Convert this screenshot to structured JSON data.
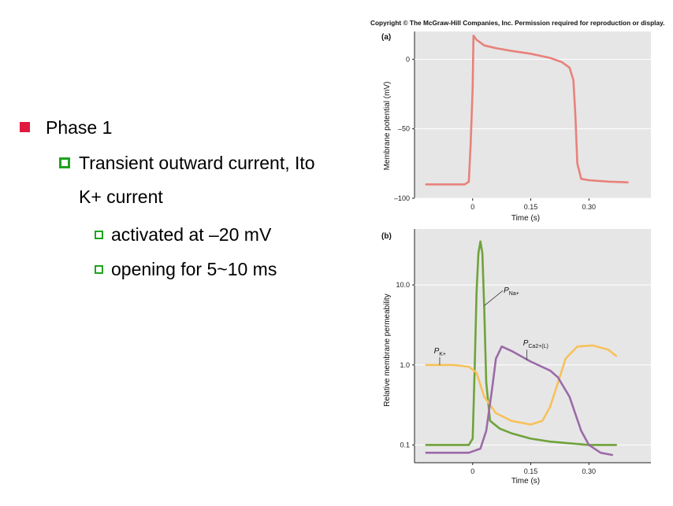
{
  "slide": {
    "bullets": [
      {
        "level": 1,
        "text": "Phase 1"
      },
      {
        "level": 2,
        "text": "Transient outward current, Ito"
      },
      {
        "level": 2,
        "text": "K+ current",
        "continuation": true
      },
      {
        "level": 3,
        "text": "activated at –20 mV"
      },
      {
        "level": 3,
        "text": "opening for 5~10 ms"
      }
    ],
    "colors": {
      "level1_marker": "#e0193f",
      "sub_marker": "#1fa31f"
    }
  },
  "copyright": "Copyright © The McGraw-Hill Companies, Inc. Permission required for reproduction or display.",
  "chart_data": [
    {
      "type": "line",
      "panel_label": "(a)",
      "xlabel": "Time (s)",
      "ylabel": "Membrane potential (mV)",
      "xlim": [
        -0.15,
        0.46
      ],
      "ylim": [
        -100,
        20
      ],
      "xticks": [
        {
          "v": 0,
          "label": "0"
        },
        {
          "v": 0.15,
          "label": "0.15"
        },
        {
          "v": 0.3,
          "label": "0.30"
        }
      ],
      "yticks": [
        {
          "v": 0,
          "label": "0"
        },
        {
          "v": -50,
          "label": "–50"
        },
        {
          "v": -100,
          "label": "–100"
        }
      ],
      "series": [
        {
          "color": "#e8817b",
          "points": [
            [
              -0.12,
              -90
            ],
            [
              -0.02,
              -90
            ],
            [
              -0.01,
              -88
            ],
            [
              -0.005,
              -60
            ],
            [
              0,
              -20
            ],
            [
              0.002,
              17
            ],
            [
              0.01,
              14
            ],
            [
              0.03,
              10
            ],
            [
              0.06,
              8
            ],
            [
              0.1,
              6
            ],
            [
              0.15,
              4
            ],
            [
              0.2,
              1
            ],
            [
              0.23,
              -2
            ],
            [
              0.25,
              -6
            ],
            [
              0.26,
              -15
            ],
            [
              0.265,
              -40
            ],
            [
              0.27,
              -75
            ],
            [
              0.28,
              -86
            ],
            [
              0.3,
              -87
            ],
            [
              0.35,
              -88
            ],
            [
              0.4,
              -88.5
            ]
          ]
        }
      ]
    },
    {
      "type": "line",
      "panel_label": "(b)",
      "xlabel": "Time (s)",
      "ylabel": "Relative membrane permeability",
      "yscale": "log",
      "xlim": [
        -0.15,
        0.46
      ],
      "ylim": [
        0.06,
        50
      ],
      "xticks": [
        {
          "v": 0,
          "label": "0"
        },
        {
          "v": 0.15,
          "label": "0.15"
        },
        {
          "v": 0.3,
          "label": "0.30"
        }
      ],
      "yticks": [
        {
          "v": 10,
          "label": "10.0"
        },
        {
          "v": 1,
          "label": "1.0"
        },
        {
          "v": 0.1,
          "label": "0.1"
        }
      ],
      "series": [
        {
          "name": "P_Na+",
          "label_main": "P",
          "label_sub": "Na+",
          "label_at": [
            0.08,
            8.0
          ],
          "pointer": [
            [
              0.078,
              8.5
            ],
            [
              0.03,
              5.5
            ]
          ],
          "color": "#6fa33a",
          "points": [
            [
              -0.12,
              0.1
            ],
            [
              -0.01,
              0.1
            ],
            [
              0,
              0.12
            ],
            [
              0.005,
              0.8
            ],
            [
              0.01,
              8
            ],
            [
              0.015,
              25
            ],
            [
              0.02,
              35
            ],
            [
              0.025,
              25
            ],
            [
              0.03,
              5
            ],
            [
              0.035,
              0.6
            ],
            [
              0.045,
              0.2
            ],
            [
              0.07,
              0.16
            ],
            [
              0.1,
              0.14
            ],
            [
              0.15,
              0.12
            ],
            [
              0.2,
              0.11
            ],
            [
              0.3,
              0.1
            ],
            [
              0.37,
              0.1
            ]
          ]
        },
        {
          "name": "P_K+",
          "label_main": "P",
          "label_sub": "K+",
          "label_at": [
            -0.1,
            1.4
          ],
          "pointer": [
            [
              -0.085,
              1.25
            ],
            [
              -0.085,
              1.0
            ]
          ],
          "color": "#f7c15a",
          "points": [
            [
              -0.12,
              1.0
            ],
            [
              -0.05,
              1.0
            ],
            [
              -0.01,
              0.95
            ],
            [
              0.01,
              0.8
            ],
            [
              0.03,
              0.4
            ],
            [
              0.06,
              0.25
            ],
            [
              0.1,
              0.2
            ],
            [
              0.15,
              0.18
            ],
            [
              0.18,
              0.2
            ],
            [
              0.2,
              0.3
            ],
            [
              0.22,
              0.6
            ],
            [
              0.24,
              1.2
            ],
            [
              0.27,
              1.7
            ],
            [
              0.31,
              1.75
            ],
            [
              0.35,
              1.55
            ],
            [
              0.37,
              1.3
            ]
          ]
        },
        {
          "name": "P_Ca2+(L)",
          "label_main": "P",
          "label_sub": "Ca2+(L)",
          "label_at": [
            0.13,
            1.75
          ],
          "pointer": [
            [
              0.14,
              1.55
            ],
            [
              0.14,
              1.15
            ]
          ],
          "color": "#9b6aa8",
          "points": [
            [
              -0.12,
              0.08
            ],
            [
              -0.01,
              0.08
            ],
            [
              0.02,
              0.09
            ],
            [
              0.035,
              0.15
            ],
            [
              0.05,
              0.5
            ],
            [
              0.06,
              1.2
            ],
            [
              0.075,
              1.7
            ],
            [
              0.1,
              1.5
            ],
            [
              0.15,
              1.1
            ],
            [
              0.2,
              0.85
            ],
            [
              0.22,
              0.7
            ],
            [
              0.25,
              0.4
            ],
            [
              0.28,
              0.15
            ],
            [
              0.3,
              0.1
            ],
            [
              0.33,
              0.08
            ],
            [
              0.36,
              0.075
            ]
          ]
        }
      ]
    }
  ]
}
